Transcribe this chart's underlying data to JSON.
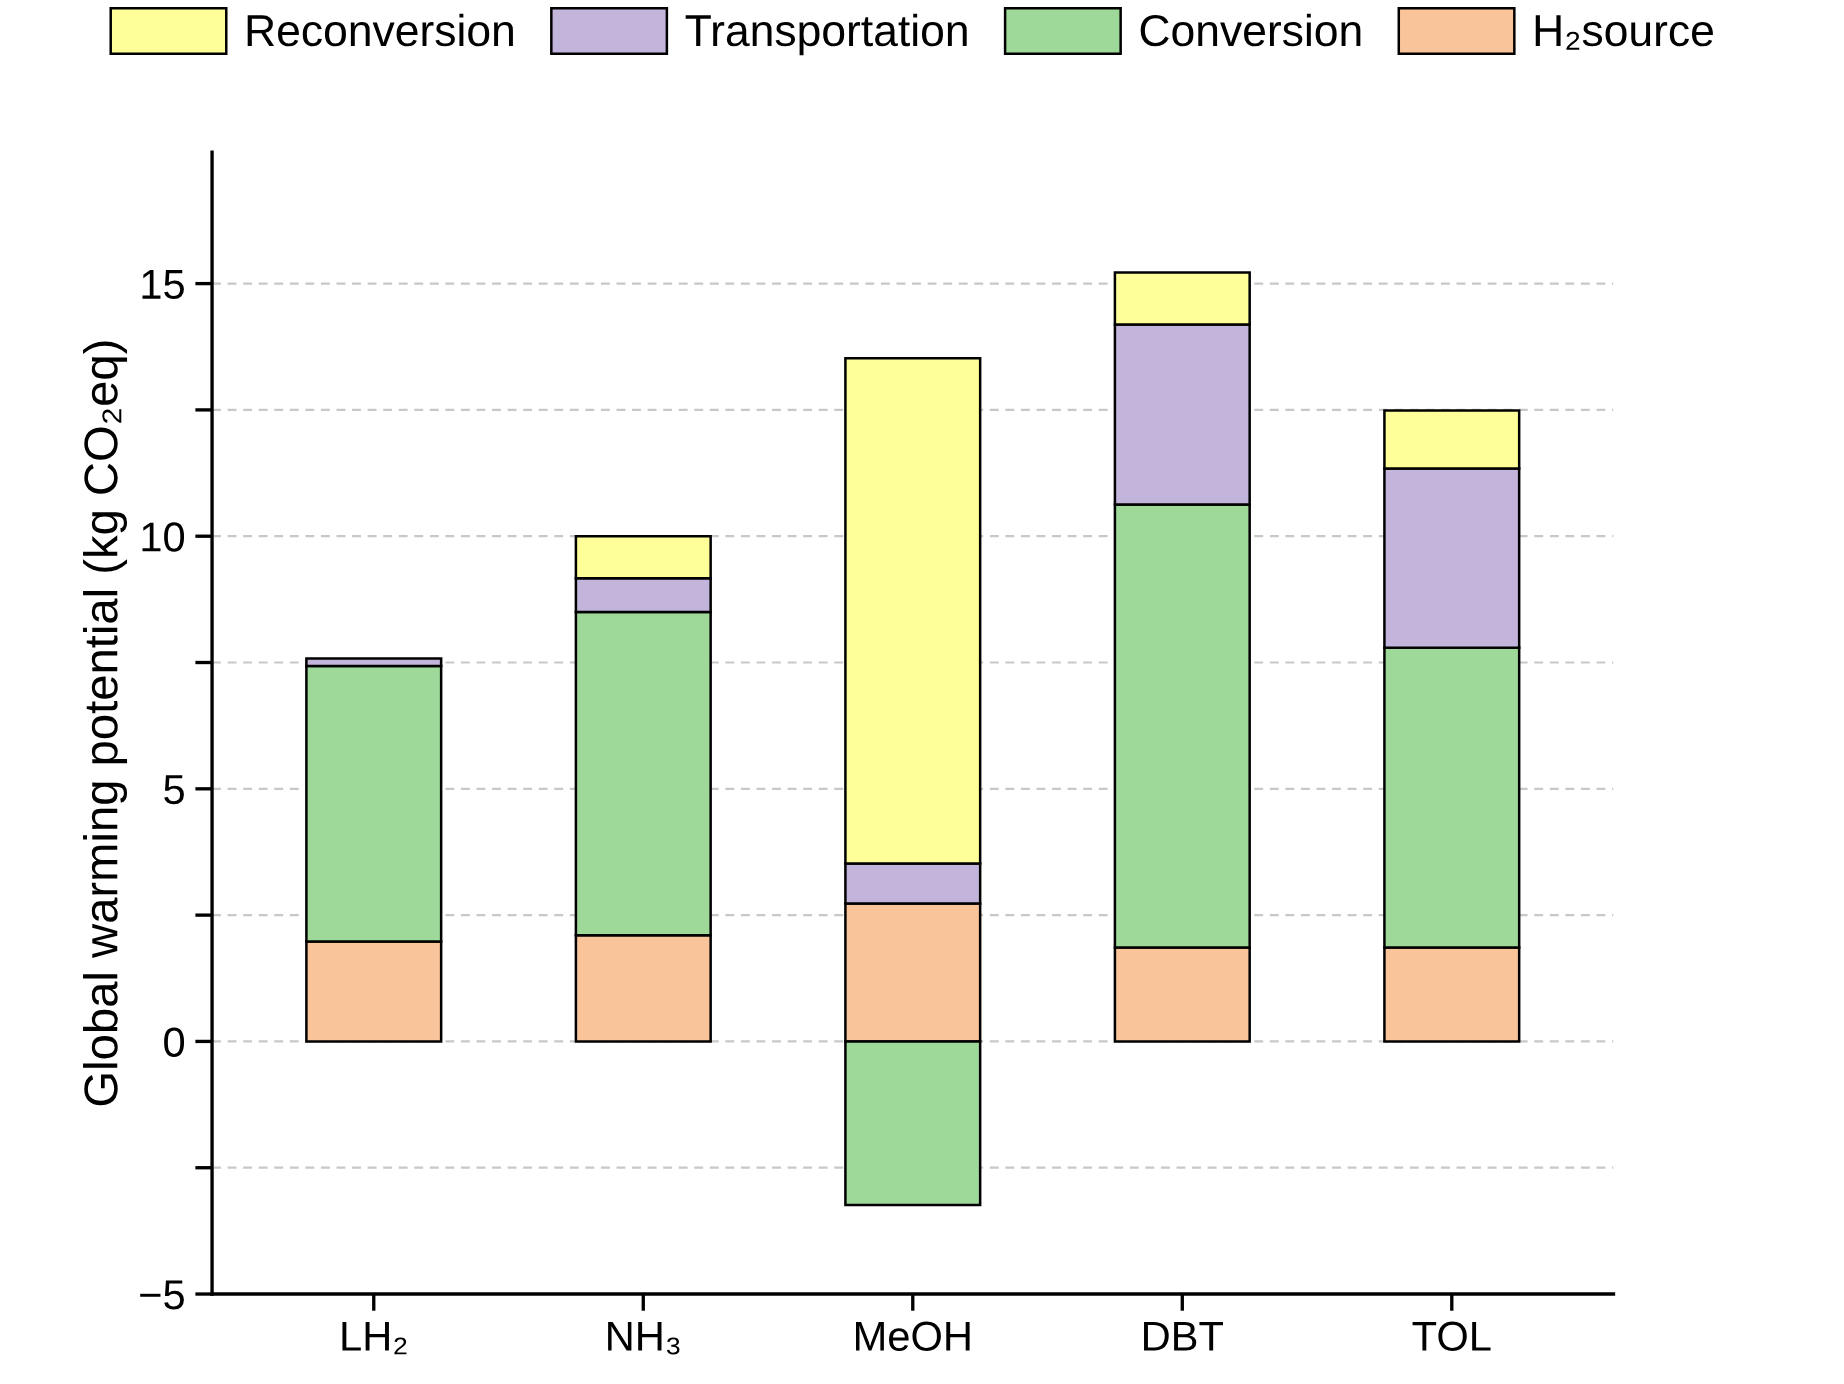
{
  "chart_data": {
    "type": "bar",
    "stacked": true,
    "categories": [
      "LH₂",
      "NH₃",
      "MeOH",
      "DBT",
      "TOL"
    ],
    "ylabel": "Global warming potential (kg CO₂eq)",
    "series": [
      {
        "name": "H₂source",
        "color": "#f9c499",
        "values": [
          1.98,
          2.1,
          2.73,
          1.86,
          1.86
        ]
      },
      {
        "name": "Conversion",
        "color": "#9fd99a",
        "values": [
          5.45,
          6.4,
          -3.24,
          8.77,
          5.93
        ]
      },
      {
        "name": "Transportation",
        "color": "#c2b4da",
        "values": [
          0.15,
          0.67,
          0.79,
          3.56,
          3.55
        ]
      },
      {
        "name": "Reconversion",
        "color": "#ffff99",
        "values": [
          null,
          0.83,
          10.0,
          1.03,
          1.15
        ]
      }
    ],
    "ylim": [
      -5,
      17.6
    ],
    "yticks": [
      -5,
      {
        "value": -2.5,
        "label": null
      },
      0,
      {
        "value": 2.5,
        "label": null
      },
      5,
      {
        "value": 7.5,
        "label": null
      },
      10,
      {
        "value": 12.5,
        "label": null
      },
      15
    ],
    "grid": "y",
    "legend": "top"
  }
}
